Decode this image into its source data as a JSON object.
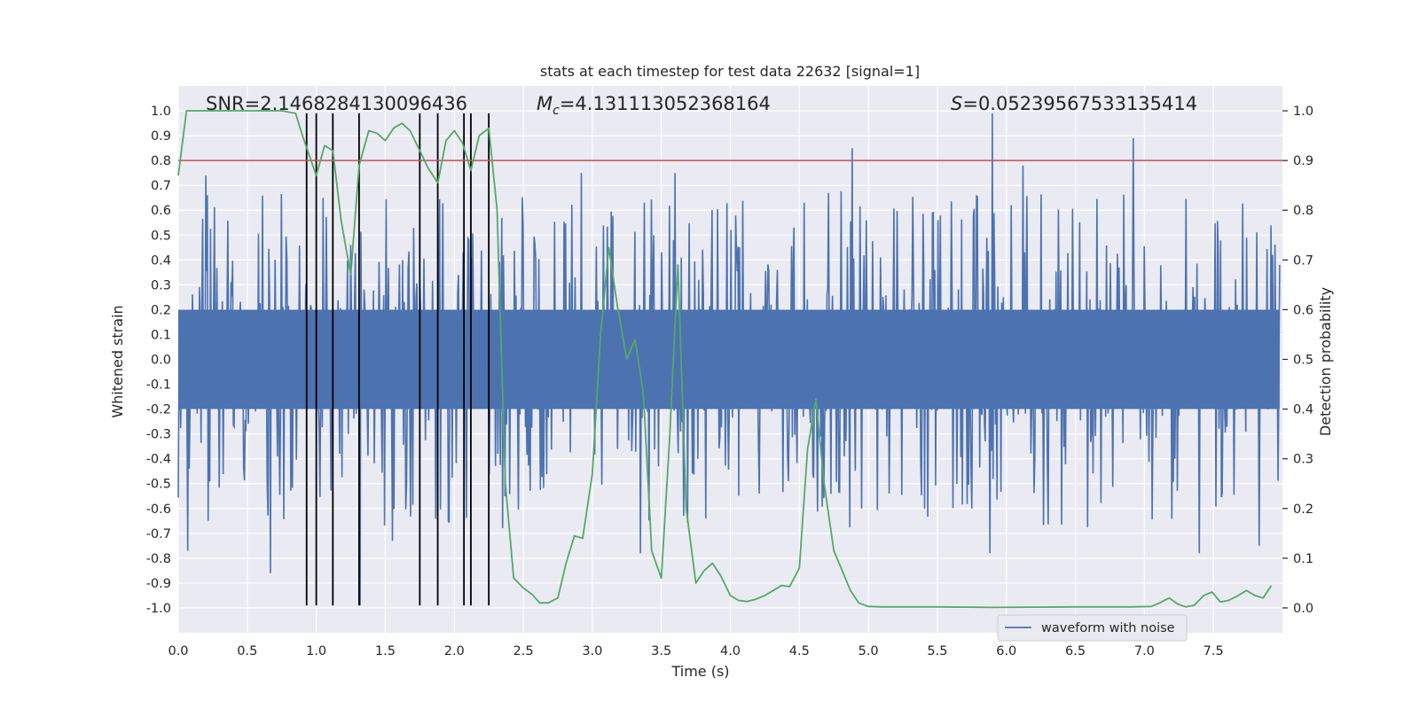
{
  "chart_data": {
    "type": "line",
    "title": "stats at each timestep for test data 22632 [signal=1]",
    "xlabel": "Time (s)",
    "ylabel_left": "Whitened strain",
    "ylabel_right": "Detection probability",
    "xlim": [
      0.0,
      8.0
    ],
    "ylim_left": [
      -1.1,
      1.1
    ],
    "ylim_right": [
      -0.05,
      1.05
    ],
    "grid": true,
    "xticks": [
      "0.0",
      "0.5",
      "1.0",
      "1.5",
      "2.0",
      "2.5",
      "3.0",
      "3.5",
      "4.0",
      "4.5",
      "5.0",
      "5.5",
      "6.0",
      "6.5",
      "7.0",
      "7.5"
    ],
    "yticks_left": [
      "-1.0",
      "-0.9",
      "-0.8",
      "-0.7",
      "-0.6",
      "-0.5",
      "-0.4",
      "-0.3",
      "-0.2",
      "-0.1",
      "0.0",
      "0.1",
      "0.2",
      "0.3",
      "0.4",
      "0.5",
      "0.6",
      "0.7",
      "0.8",
      "0.9",
      "1.0"
    ],
    "yticks_right": [
      "0.0",
      "0.1",
      "0.2",
      "0.3",
      "0.4",
      "0.5",
      "0.6",
      "0.7",
      "0.8",
      "0.9",
      "1.0"
    ],
    "annotations": {
      "snr": "SNR=2.1468284130096436",
      "mc_symbol": "M",
      "mc_sub": "c",
      "mc_value": "=4.131113052368164",
      "s_symbol": "S",
      "s_value": "=0.05239567533135414"
    },
    "legend": {
      "label": "waveform with noise",
      "placement": "lower-right"
    },
    "threshold": {
      "axis": "right",
      "value": 0.9,
      "color": "#c44e52"
    },
    "event_lines": {
      "x": [
        0.93,
        1.0,
        1.12,
        1.31,
        1.75,
        1.88,
        2.07,
        2.12,
        2.25
      ],
      "ymin": -0.99,
      "ymax": 0.99,
      "color": "#000000"
    },
    "waveform": {
      "name": "waveform with noise",
      "color": "#4c72b0",
      "x_range": [
        0.0,
        7.98
      ],
      "samples": 1400,
      "typical_amplitude": 0.38,
      "peaks": [
        {
          "x": 0.07,
          "y": -0.77
        },
        {
          "x": 0.67,
          "y": -0.86
        },
        {
          "x": 1.32,
          "y": -0.99
        },
        {
          "x": 1.55,
          "y": -0.73
        },
        {
          "x": 3.35,
          "y": -0.78
        },
        {
          "x": 4.88,
          "y": 0.85
        },
        {
          "x": 5.88,
          "y": -0.78
        },
        {
          "x": 5.9,
          "y": 0.99
        },
        {
          "x": 6.92,
          "y": 0.89
        },
        {
          "x": 7.4,
          "y": -0.78
        },
        {
          "x": 7.83,
          "y": -0.75
        },
        {
          "x": 0.2,
          "y": 0.74
        },
        {
          "x": 2.92,
          "y": 0.75
        },
        {
          "x": 3.6,
          "y": 0.75
        },
        {
          "x": 6.12,
          "y": 0.78
        }
      ]
    },
    "detection_probability": {
      "color": "#55a868",
      "x": [
        0.0,
        0.06,
        0.12,
        0.25,
        0.5,
        0.75,
        0.85,
        0.9,
        0.95,
        1.0,
        1.06,
        1.12,
        1.18,
        1.25,
        1.31,
        1.38,
        1.44,
        1.5,
        1.56,
        1.62,
        1.68,
        1.75,
        1.81,
        1.88,
        1.94,
        2.0,
        2.06,
        2.12,
        2.18,
        2.25,
        2.31,
        2.37,
        2.43,
        2.5,
        2.56,
        2.62,
        2.68,
        2.75,
        2.81,
        2.87,
        2.93,
        3.0,
        3.06,
        3.12,
        3.18,
        3.25,
        3.31,
        3.37,
        3.43,
        3.5,
        3.56,
        3.62,
        3.68,
        3.75,
        3.81,
        3.87,
        3.93,
        4.0,
        4.06,
        4.12,
        4.18,
        4.25,
        4.31,
        4.37,
        4.43,
        4.5,
        4.56,
        4.62,
        4.68,
        4.75,
        4.81,
        4.87,
        4.93,
        5.0,
        5.1,
        5.5,
        5.9,
        6.5,
        6.9,
        7.05,
        7.11,
        7.18,
        7.24,
        7.3,
        7.36,
        7.43,
        7.49,
        7.55,
        7.61,
        7.68,
        7.74,
        7.8,
        7.86,
        7.92
      ],
      "y": [
        0.87,
        1.0,
        1.0,
        1.0,
        1.0,
        1.0,
        0.995,
        0.95,
        0.91,
        0.87,
        0.93,
        0.92,
        0.78,
        0.67,
        0.89,
        0.96,
        0.955,
        0.94,
        0.965,
        0.975,
        0.96,
        0.92,
        0.885,
        0.855,
        0.94,
        0.96,
        0.935,
        0.88,
        0.95,
        0.965,
        0.8,
        0.25,
        0.06,
        0.04,
        0.028,
        0.01,
        0.01,
        0.02,
        0.09,
        0.145,
        0.14,
        0.27,
        0.55,
        0.725,
        0.61,
        0.5,
        0.54,
        0.43,
        0.115,
        0.06,
        0.34,
        0.69,
        0.2,
        0.05,
        0.075,
        0.09,
        0.065,
        0.025,
        0.015,
        0.013,
        0.017,
        0.025,
        0.035,
        0.045,
        0.043,
        0.08,
        0.32,
        0.42,
        0.25,
        0.115,
        0.075,
        0.035,
        0.01,
        0.003,
        0.002,
        0.002,
        0.001,
        0.002,
        0.002,
        0.003,
        0.01,
        0.02,
        0.008,
        0.002,
        0.005,
        0.025,
        0.032,
        0.012,
        0.015,
        0.025,
        0.035,
        0.025,
        0.02,
        0.045
      ]
    }
  }
}
